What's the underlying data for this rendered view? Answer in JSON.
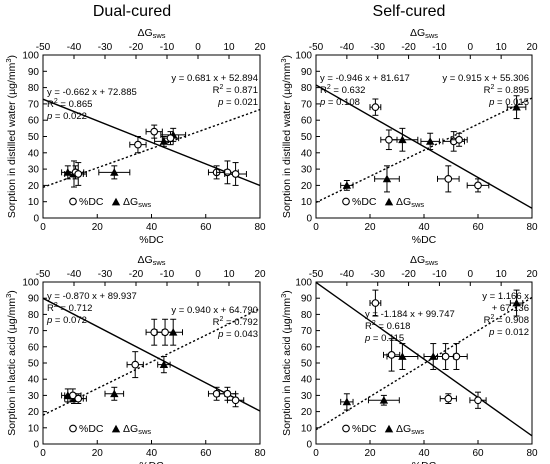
{
  "chart_data": [
    {
      "type": "scatter",
      "column_title": "Dual-cured",
      "xlabel": "%DC",
      "x2label": "ΔG",
      "x2label_sub": "sws",
      "ylabel": "Sorption in distilled water (µg/mm",
      "ylabel_sup": "3",
      "xlim": [
        0,
        80
      ],
      "x2lim": [
        -50,
        20
      ],
      "ylim": [
        0,
        100
      ],
      "xticks": [
        "0",
        "20",
        "40",
        "60",
        "80"
      ],
      "x2ticks": [
        "-50",
        "-40",
        "-30",
        "-20",
        "-10",
        "0",
        "10",
        "20"
      ],
      "x2ticks_labeled": [
        "-40",
        "-20",
        "0",
        "20"
      ],
      "yticks": [
        "0",
        "10",
        "20",
        "30",
        "40",
        "50",
        "60",
        "70",
        "80",
        "90",
        "100"
      ],
      "legend_dc": "%DC",
      "legend_g": "ΔG",
      "legend_g_sub": "sws",
      "dc_points": [
        {
          "x": 35,
          "y": 45,
          "xe": 3,
          "ye": 5
        },
        {
          "x": 41,
          "y": 53,
          "xe": 3,
          "ye": 4
        },
        {
          "x": 47,
          "y": 49,
          "xe": 3,
          "ye": 4
        },
        {
          "x": 64,
          "y": 28,
          "xe": 3,
          "ye": 4
        },
        {
          "x": 68,
          "y": 28,
          "xe": 4,
          "ye": 7
        },
        {
          "x": 71,
          "y": 27,
          "xe": 4,
          "ye": 7
        },
        {
          "x": 12,
          "y": 28,
          "xe": 3,
          "ye": 4
        },
        {
          "x": 13,
          "y": 27,
          "xe": 3,
          "ye": 7
        }
      ],
      "g_points": [
        {
          "x": -42,
          "y": 28,
          "xe": 2,
          "ye": 4
        },
        {
          "x": -40,
          "y": 27,
          "xe": 3,
          "ye": 8
        },
        {
          "x": -27,
          "y": 28,
          "xe": 5,
          "ye": 4
        },
        {
          "x": -11,
          "y": 47,
          "xe": 3,
          "ye": 3
        },
        {
          "x": -8,
          "y": 51,
          "xe": 4,
          "ye": 4
        }
      ],
      "dc_line": {
        "slope": -0.662,
        "intercept": 72.885
      },
      "g_line": {
        "slope": 0.681,
        "intercept": 52.894
      },
      "dc_eq": [
        "y = -0.662 x + 72.885",
        "R",
        "2",
        " = 0.865",
        "p",
        " = 0.022"
      ],
      "g_eq": [
        "y = 0.681 x + 52.894",
        "R",
        "2",
        " = 0.871",
        "p",
        " = 0.021"
      ]
    },
    {
      "type": "scatter",
      "column_title": "Self-cured",
      "xlabel": "%DC",
      "x2label": "ΔG",
      "x2label_sub": "sws",
      "ylabel": "Sorption in distilled water (µg/mm",
      "ylabel_sup": "3",
      "xlim": [
        0,
        80
      ],
      "x2lim": [
        -50,
        20
      ],
      "ylim": [
        0,
        100
      ],
      "xticks": [
        "0",
        "20",
        "40",
        "60",
        "80"
      ],
      "x2ticks": [
        "-50",
        "-40",
        "-30",
        "-20",
        "-10",
        "0",
        "10",
        "20"
      ],
      "x2ticks_labeled": [
        "-40",
        "-20",
        "0",
        "20"
      ],
      "yticks": [
        "0",
        "10",
        "20",
        "30",
        "40",
        "50",
        "60",
        "70",
        "80",
        "90",
        "100"
      ],
      "legend_dc": "%DC",
      "legend_g": "ΔG",
      "legend_g_sub": "sws",
      "dc_points": [
        {
          "x": 22,
          "y": 68,
          "xe": 2,
          "ye": 5
        },
        {
          "x": 27,
          "y": 48,
          "xe": 3,
          "ye": 6
        },
        {
          "x": 49,
          "y": 24,
          "xe": 4,
          "ye": 8
        },
        {
          "x": 51,
          "y": 47,
          "xe": 4,
          "ye": 6
        },
        {
          "x": 60,
          "y": 20,
          "xe": 4,
          "ye": 4
        },
        {
          "x": 53,
          "y": 48,
          "xe": 3,
          "ye": 4
        }
      ],
      "g_points": [
        {
          "x": -40,
          "y": 20,
          "xe": 2,
          "ye": 3
        },
        {
          "x": -27,
          "y": 24,
          "xe": 4,
          "ye": 8
        },
        {
          "x": -22,
          "y": 48,
          "xe": 5,
          "ye": 7
        },
        {
          "x": -13,
          "y": 47,
          "xe": 3,
          "ye": 5
        },
        {
          "x": 15,
          "y": 68,
          "xe": 3,
          "ye": 7
        }
      ],
      "dc_line": {
        "slope": -0.946,
        "intercept": 81.617
      },
      "g_line": {
        "slope": 0.915,
        "intercept": 55.306
      },
      "dc_eq": [
        "y = -0.946 x + 81.617",
        "R",
        "2",
        " = 0.632",
        "p",
        " = 0.108"
      ],
      "g_eq": [
        "y = 0.915 x + 55.306",
        "R",
        "2",
        " = 0.895",
        "p",
        " = 0.015"
      ]
    },
    {
      "type": "scatter",
      "column_title": "",
      "xlabel": "%DC",
      "x2label": "ΔG",
      "x2label_sub": "sws",
      "ylabel": "Sorption in lactic acid (µg/mm",
      "ylabel_sup": "3",
      "xlim": [
        0,
        80
      ],
      "x2lim": [
        -50,
        20
      ],
      "ylim": [
        0,
        100
      ],
      "xticks": [
        "0",
        "20",
        "40",
        "60",
        "80"
      ],
      "x2ticks": [
        "-50",
        "-40",
        "-30",
        "-20",
        "-10",
        "0",
        "10",
        "20"
      ],
      "x2ticks_labeled": [
        "-40",
        "-20",
        "0",
        "20"
      ],
      "yticks": [
        "0",
        "10",
        "20",
        "30",
        "40",
        "50",
        "60",
        "70",
        "80",
        "90",
        "100"
      ],
      "legend_dc": "%DC",
      "legend_g": "ΔG",
      "legend_g_sub": "sws",
      "dc_points": [
        {
          "x": 34,
          "y": 49,
          "xe": 3,
          "ye": 8
        },
        {
          "x": 41,
          "y": 69,
          "xe": 3,
          "ye": 8
        },
        {
          "x": 45,
          "y": 69,
          "xe": 3,
          "ye": 8
        },
        {
          "x": 64,
          "y": 31,
          "xe": 3,
          "ye": 4
        },
        {
          "x": 68,
          "y": 31,
          "xe": 3,
          "ye": 4
        },
        {
          "x": 71,
          "y": 27,
          "xe": 3,
          "ye": 4
        },
        {
          "x": 11,
          "y": 30,
          "xe": 3,
          "ye": 4
        },
        {
          "x": 13,
          "y": 28,
          "xe": 3,
          "ye": 3
        }
      ],
      "g_points": [
        {
          "x": -42,
          "y": 30,
          "xe": 2,
          "ye": 4
        },
        {
          "x": -40,
          "y": 28,
          "xe": 3,
          "ye": 3
        },
        {
          "x": -27,
          "y": 31,
          "xe": 3,
          "ye": 4
        },
        {
          "x": -11,
          "y": 49,
          "xe": 2,
          "ye": 5
        },
        {
          "x": -8,
          "y": 69,
          "xe": 3,
          "ye": 8
        }
      ],
      "dc_line": {
        "slope": -0.87,
        "intercept": 89.937
      },
      "g_line": {
        "slope": 0.94,
        "intercept": 64.79
      },
      "dc_eq": [
        "y = -0.870 x + 89.937",
        "R",
        "2",
        " = 0.712",
        "p",
        " = 0.072"
      ],
      "g_eq": [
        "y = 0.940 x + 64.790",
        "R",
        "2",
        " = 0.792",
        "p",
        " = 0.043"
      ]
    },
    {
      "type": "scatter",
      "column_title": "",
      "xlabel": "%DC",
      "x2label": "ΔG",
      "x2label_sub": "sws",
      "ylabel": "Sorption in lactic acid (µg/mm",
      "ylabel_sup": "3",
      "xlim": [
        0,
        80
      ],
      "x2lim": [
        -50,
        20
      ],
      "ylim": [
        0,
        100
      ],
      "xticks": [
        "0",
        "20",
        "40",
        "60",
        "80"
      ],
      "x2ticks": [
        "-50",
        "-40",
        "-30",
        "-20",
        "-10",
        "0",
        "10",
        "20"
      ],
      "x2ticks_labeled": [
        "-40",
        "-20",
        "0",
        "20"
      ],
      "yticks": [
        "0",
        "10",
        "20",
        "30",
        "40",
        "50",
        "60",
        "70",
        "80",
        "90",
        "100"
      ],
      "legend_dc": "%DC",
      "legend_g": "ΔG",
      "legend_g_sub": "sws",
      "dc_points": [
        {
          "x": 22,
          "y": 87,
          "xe": 2,
          "ye": 8
        },
        {
          "x": 28,
          "y": 55,
          "xe": 3,
          "ye": 10
        },
        {
          "x": 49,
          "y": 28,
          "xe": 3,
          "ye": 3
        },
        {
          "x": 52,
          "y": 54,
          "xe": 4,
          "ye": 8
        },
        {
          "x": 60,
          "y": 27,
          "xe": 3,
          "ye": 5
        },
        {
          "x": 48,
          "y": 54,
          "xe": 3,
          "ye": 8
        }
      ],
      "g_points": [
        {
          "x": -40,
          "y": 26,
          "xe": 2,
          "ye": 5
        },
        {
          "x": -28,
          "y": 27,
          "xe": 5,
          "ye": 3
        },
        {
          "x": -22,
          "y": 54,
          "xe": 5,
          "ye": 8
        },
        {
          "x": -12,
          "y": 54,
          "xe": 3,
          "ye": 8
        },
        {
          "x": 15,
          "y": 87,
          "xe": 2,
          "ye": 8
        }
      ],
      "dc_line": {
        "slope": -1.184,
        "intercept": 99.747
      },
      "g_line": {
        "slope": 1.166,
        "intercept": 67.136
      },
      "dc_eq": [
        "y = -1.184 x + 99.747",
        "R",
        "2",
        " = 0.618",
        "p",
        " = 0.115"
      ],
      "g_eq": [
        "y = 1.166 x",
        "+ 67.136",
        "R",
        "2",
        " = 0.908",
        "p",
        " = 0.012"
      ]
    }
  ]
}
